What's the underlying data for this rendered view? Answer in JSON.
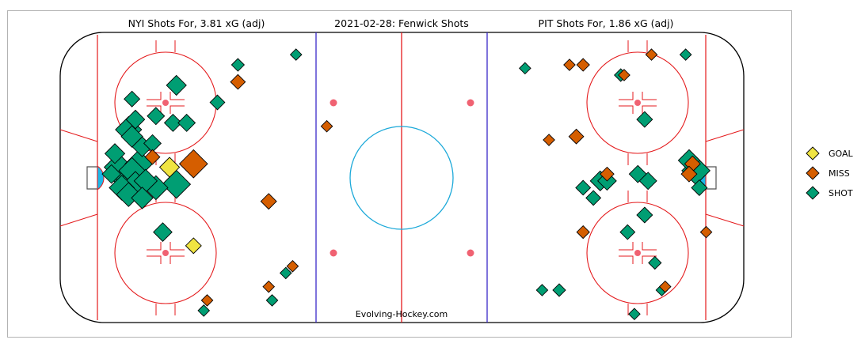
{
  "chart_data": {
    "type": "scatter",
    "titles": {
      "left": "NYI Shots For, 3.81 xG (adj)",
      "center": "2021-02-28:  Fenwick Shots",
      "right": "PIT Shots For, 1.86 xG (adj)"
    },
    "credit": "Evolving-Hockey.com",
    "legend": [
      {
        "label": "GOAL",
        "color": "#f0e442"
      },
      {
        "label": "MISS",
        "color": "#d55e00"
      },
      {
        "label": "SHOT",
        "color": "#009e73"
      }
    ],
    "x_range": [
      -100,
      100
    ],
    "y_range": [
      -42.5,
      42.5
    ],
    "size_metric": "xG",
    "series": [
      {
        "team": "NYI",
        "points": [
          {
            "x": -83,
            "y": 3,
            "type": "SHOT",
            "xg": 0.3
          },
          {
            "x": -81,
            "y": 0,
            "type": "SHOT",
            "xg": 0.35
          },
          {
            "x": -79,
            "y": 2,
            "type": "SHOT",
            "xg": 0.25
          },
          {
            "x": -77,
            "y": 4,
            "type": "SHOT",
            "xg": 0.28
          },
          {
            "x": -82,
            "y": -3,
            "type": "SHOT",
            "xg": 0.22
          },
          {
            "x": -80,
            "y": -5,
            "type": "SHOT",
            "xg": 0.2
          },
          {
            "x": -78,
            "y": -2,
            "type": "SHOT",
            "xg": 0.24
          },
          {
            "x": -75,
            "y": -1,
            "type": "SHOT",
            "xg": 0.18
          },
          {
            "x": -76,
            "y": -6,
            "type": "SHOT",
            "xg": 0.15
          },
          {
            "x": -72,
            "y": -3,
            "type": "SHOT",
            "xg": 0.2
          },
          {
            "x": -84,
            "y": 7,
            "type": "SHOT",
            "xg": 0.12
          },
          {
            "x": -85,
            "y": 1,
            "type": "SHOT",
            "xg": 0.1
          },
          {
            "x": -80,
            "y": 14,
            "type": "SHOT",
            "xg": 0.25
          },
          {
            "x": -79,
            "y": 12,
            "type": "SHOT",
            "xg": 0.15
          },
          {
            "x": -78,
            "y": 17,
            "type": "SHOT",
            "xg": 0.1
          },
          {
            "x": -76,
            "y": 9,
            "type": "SHOT",
            "xg": 0.12
          },
          {
            "x": -73,
            "y": 10,
            "type": "SHOT",
            "xg": 0.08
          },
          {
            "x": -72,
            "y": 18,
            "type": "SHOT",
            "xg": 0.08
          },
          {
            "x": -67,
            "y": 16,
            "type": "SHOT",
            "xg": 0.08
          },
          {
            "x": -63,
            "y": 16,
            "type": "SHOT",
            "xg": 0.08
          },
          {
            "x": -66,
            "y": -2,
            "type": "SHOT",
            "xg": 0.3
          },
          {
            "x": -79,
            "y": 23,
            "type": "SHOT",
            "xg": 0.06
          },
          {
            "x": -66,
            "y": 27,
            "type": "SHOT",
            "xg": 0.12
          },
          {
            "x": -54,
            "y": 22,
            "type": "SHOT",
            "xg": 0.05
          },
          {
            "x": -70,
            "y": -16,
            "type": "SHOT",
            "xg": 0.1
          },
          {
            "x": -48,
            "y": 33,
            "type": "SHOT",
            "xg": 0.03
          },
          {
            "x": -31,
            "y": 36,
            "type": "SHOT",
            "xg": 0.02
          },
          {
            "x": -58,
            "y": -39,
            "type": "SHOT",
            "xg": 0.02
          },
          {
            "x": -38,
            "y": -36,
            "type": "SHOT",
            "xg": 0.02
          },
          {
            "x": -34,
            "y": -28,
            "type": "SHOT",
            "xg": 0.02
          },
          {
            "x": -68,
            "y": 3,
            "type": "GOAL",
            "xg": 0.12
          },
          {
            "x": -61,
            "y": -20,
            "type": "GOAL",
            "xg": 0.06
          },
          {
            "x": -61,
            "y": 4,
            "type": "MISS",
            "xg": 0.3
          },
          {
            "x": -73,
            "y": 6,
            "type": "MISS",
            "xg": 0.05
          },
          {
            "x": -48,
            "y": 28,
            "type": "MISS",
            "xg": 0.05
          },
          {
            "x": -39,
            "y": -7,
            "type": "MISS",
            "xg": 0.06
          },
          {
            "x": -57,
            "y": -36,
            "type": "MISS",
            "xg": 0.02
          },
          {
            "x": -39,
            "y": -32,
            "type": "MISS",
            "xg": 0.02
          },
          {
            "x": -32,
            "y": -26,
            "type": "MISS",
            "xg": 0.02
          },
          {
            "x": -22,
            "y": 15,
            "type": "MISS",
            "xg": 0.02
          }
        ]
      },
      {
        "team": "PIT",
        "points": [
          {
            "x": 86,
            "y": 2,
            "type": "SHOT",
            "xg": 0.3
          },
          {
            "x": 84,
            "y": 5,
            "type": "SHOT",
            "xg": 0.15
          },
          {
            "x": 87,
            "y": -3,
            "type": "SHOT",
            "xg": 0.06
          },
          {
            "x": 69,
            "y": 1,
            "type": "SHOT",
            "xg": 0.08
          },
          {
            "x": 72,
            "y": -1,
            "type": "SHOT",
            "xg": 0.08
          },
          {
            "x": 58,
            "y": -1,
            "type": "SHOT",
            "xg": 0.12
          },
          {
            "x": 60,
            "y": -1,
            "type": "SHOT",
            "xg": 0.1
          },
          {
            "x": 53,
            "y": -3,
            "type": "SHOT",
            "xg": 0.05
          },
          {
            "x": 56,
            "y": -6,
            "type": "SHOT",
            "xg": 0.05
          },
          {
            "x": 71,
            "y": -11,
            "type": "SHOT",
            "xg": 0.06
          },
          {
            "x": 66,
            "y": -16,
            "type": "SHOT",
            "xg": 0.05
          },
          {
            "x": 71,
            "y": 17,
            "type": "SHOT",
            "xg": 0.06
          },
          {
            "x": 64,
            "y": 30,
            "type": "SHOT",
            "xg": 0.03
          },
          {
            "x": 74,
            "y": -25,
            "type": "SHOT",
            "xg": 0.03
          },
          {
            "x": 68,
            "y": -40,
            "type": "SHOT",
            "xg": 0.02
          },
          {
            "x": 76,
            "y": -33,
            "type": "SHOT",
            "xg": 0.02
          },
          {
            "x": 46,
            "y": -33,
            "type": "SHOT",
            "xg": 0.03
          },
          {
            "x": 41,
            "y": -33,
            "type": "SHOT",
            "xg": 0.02
          },
          {
            "x": 83,
            "y": 36,
            "type": "SHOT",
            "xg": 0.02
          },
          {
            "x": 85,
            "y": 4,
            "type": "MISS",
            "xg": 0.06
          },
          {
            "x": 84,
            "y": 1,
            "type": "MISS",
            "xg": 0.06
          },
          {
            "x": 60,
            "y": 1,
            "type": "MISS",
            "xg": 0.04
          },
          {
            "x": 51,
            "y": 12,
            "type": "MISS",
            "xg": 0.05
          },
          {
            "x": 43,
            "y": 11,
            "type": "MISS",
            "xg": 0.02
          },
          {
            "x": 49,
            "y": 33,
            "type": "MISS",
            "xg": 0.02
          },
          {
            "x": 53,
            "y": 33,
            "type": "MISS",
            "xg": 0.03
          },
          {
            "x": 65,
            "y": 30,
            "type": "MISS",
            "xg": 0.02
          },
          {
            "x": 73,
            "y": 36,
            "type": "MISS",
            "xg": 0.02
          },
          {
            "x": 53,
            "y": -16,
            "type": "MISS",
            "xg": 0.03
          },
          {
            "x": 89,
            "y": -16,
            "type": "MISS",
            "xg": 0.02
          },
          {
            "x": 77,
            "y": -32,
            "type": "MISS",
            "xg": 0.02
          },
          {
            "x": 36,
            "y": 32,
            "type": "SHOT",
            "xg": 0.02
          }
        ]
      }
    ]
  }
}
